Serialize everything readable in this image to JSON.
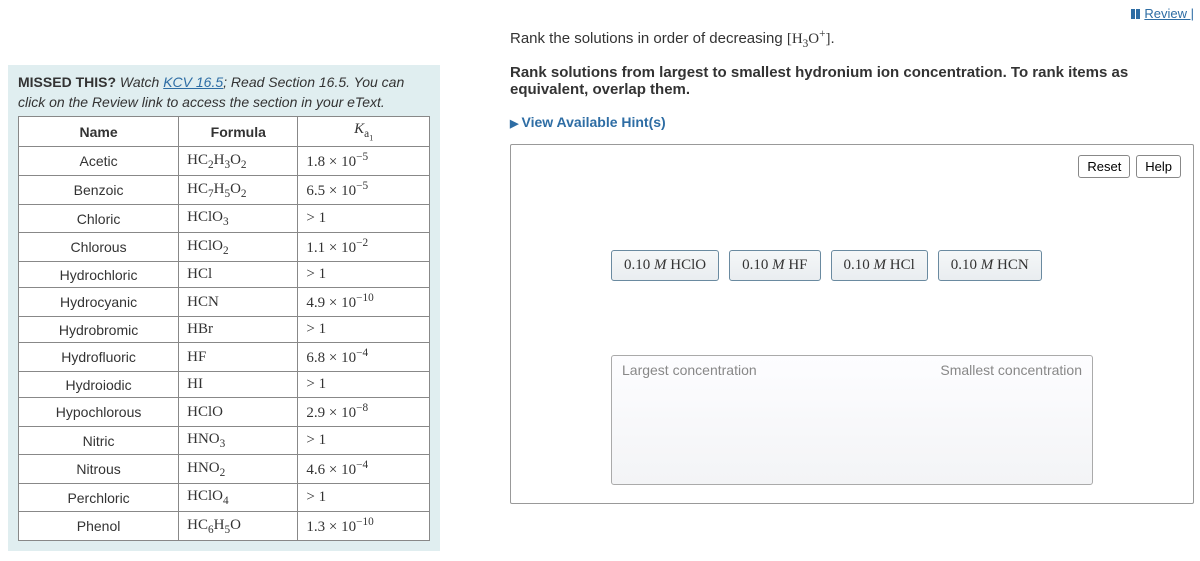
{
  "topbar": {
    "review_link": "Review"
  },
  "missed": {
    "prefix": "MISSED THIS?",
    "text_before_link": " Watch ",
    "link": "KCV 16.5",
    "text_after_link": "; Read Section 16.5. You can click on the Review link to access the section in your eText."
  },
  "table": {
    "headers": [
      "Name",
      "Formula",
      "K_a1"
    ],
    "rows": [
      {
        "name": "Acetic",
        "formula": "HC<sub>2</sub>H<sub>3</sub>O<sub>2</sub>",
        "ka": "1.8 × 10<sup>−5</sup>"
      },
      {
        "name": "Benzoic",
        "formula": "HC<sub>7</sub>H<sub>5</sub>O<sub>2</sub>",
        "ka": "6.5 × 10<sup>−5</sup>"
      },
      {
        "name": "Chloric",
        "formula": "HClO<sub>3</sub>",
        "ka": "> 1"
      },
      {
        "name": "Chlorous",
        "formula": "HClO<sub>2</sub>",
        "ka": "1.1 × 10<sup>−2</sup>"
      },
      {
        "name": "Hydrochloric",
        "formula": "HCl",
        "ka": "> 1"
      },
      {
        "name": "Hydrocyanic",
        "formula": "HCN",
        "ka": "4.9 × 10<sup>−10</sup>"
      },
      {
        "name": "Hydrobromic",
        "formula": "HBr",
        "ka": "> 1"
      },
      {
        "name": "Hydrofluoric",
        "formula": "HF",
        "ka": "6.8 × 10<sup>−4</sup>"
      },
      {
        "name": "Hydroiodic",
        "formula": "HI",
        "ka": "> 1"
      },
      {
        "name": "Hypochlorous",
        "formula": "HClO",
        "ka": "2.9 × 10<sup>−8</sup>"
      },
      {
        "name": "Nitric",
        "formula": "HNO<sub>3</sub>",
        "ka": "> 1"
      },
      {
        "name": "Nitrous",
        "formula": "HNO<sub>2</sub>",
        "ka": "4.6 × 10<sup>−4</sup>"
      },
      {
        "name": "Perchloric",
        "formula": "HClO<sub>4</sub>",
        "ka": "> 1"
      },
      {
        "name": "Phenol",
        "formula": "HC<sub>6</sub>H<sub>5</sub>O",
        "ka": "1.3 × 10<sup>−10</sup>"
      }
    ]
  },
  "question": {
    "prompt_prefix": "Rank the solutions in order of decreasing ",
    "prompt_math": "[H<sub>3</sub>O<sup>+</sup>]",
    "prompt_suffix": ".",
    "instruction": "Rank solutions from largest to smallest hydronium ion concentration. To rank items as equivalent, overlap them.",
    "hints": "View Available Hint(s)"
  },
  "workspace": {
    "reset": "Reset",
    "help": "Help",
    "tiles": [
      "0.10 <em>M</em> HClO",
      "0.10 <em>M</em> HF",
      "0.10 <em>M</em> HCl",
      "0.10 <em>M</em> HCN"
    ],
    "drop_left": "Largest concentration",
    "drop_right": "Smallest concentration"
  }
}
